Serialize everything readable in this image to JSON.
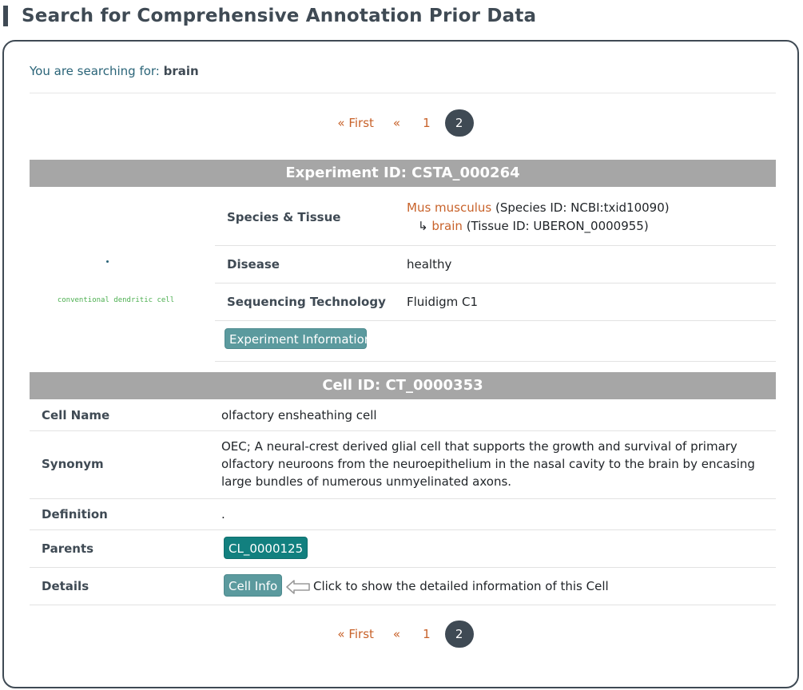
{
  "page": {
    "title": "Search for Comprehensive Annotation Prior Data"
  },
  "search": {
    "prefix": "You are searching for:",
    "term": "brain"
  },
  "pagination": {
    "first": "« First",
    "prev": "«",
    "page1": "1",
    "page2": "2",
    "active_page": "2"
  },
  "experiment": {
    "header": "Experiment ID: CSTA_000264",
    "image_caption": "conventional dendritic cell",
    "species_label": "Species & Tissue",
    "species_name": "Mus musculus",
    "species_id": "(Species ID: NCBI:txid10090)",
    "tissue_arrow": "↳",
    "tissue_name": "brain",
    "tissue_id": "(Tissue ID: UBERON_0000955)",
    "disease_label": "Disease",
    "disease_value": "healthy",
    "tech_label": "Sequencing Technology",
    "tech_value": "Fluidigm C1",
    "info_button": "Experiment Information"
  },
  "cell": {
    "header": "Cell ID: CT_0000353",
    "name_label": "Cell Name",
    "name_value": "olfactory ensheathing cell",
    "synonym_label": "Synonym",
    "synonym_value": "OEC; A neural-crest derived glial cell that supports the growth and survival of primary olfactory neuroons from the neuroepithelium in the nasal cavity to the brain by encasing large bundles of numerous unmyelinated axons.",
    "definition_label": "Definition",
    "definition_value": ".",
    "parents_label": "Parents",
    "parents_value": "CL_0000125",
    "details_label": "Details",
    "details_button": "Cell Info",
    "details_hint": "Click to show the detailed information of this Cell"
  },
  "colors": {
    "accent_dark": "#3f4a54",
    "link_orange": "#c8622a",
    "header_gray": "#a6a6a6",
    "button_teal": "#5b9a9e",
    "parent_teal": "#12807f"
  },
  "icons": {
    "hint_arrow": "left-arrow-outline-icon",
    "title_accent": "title-bar-accent"
  }
}
